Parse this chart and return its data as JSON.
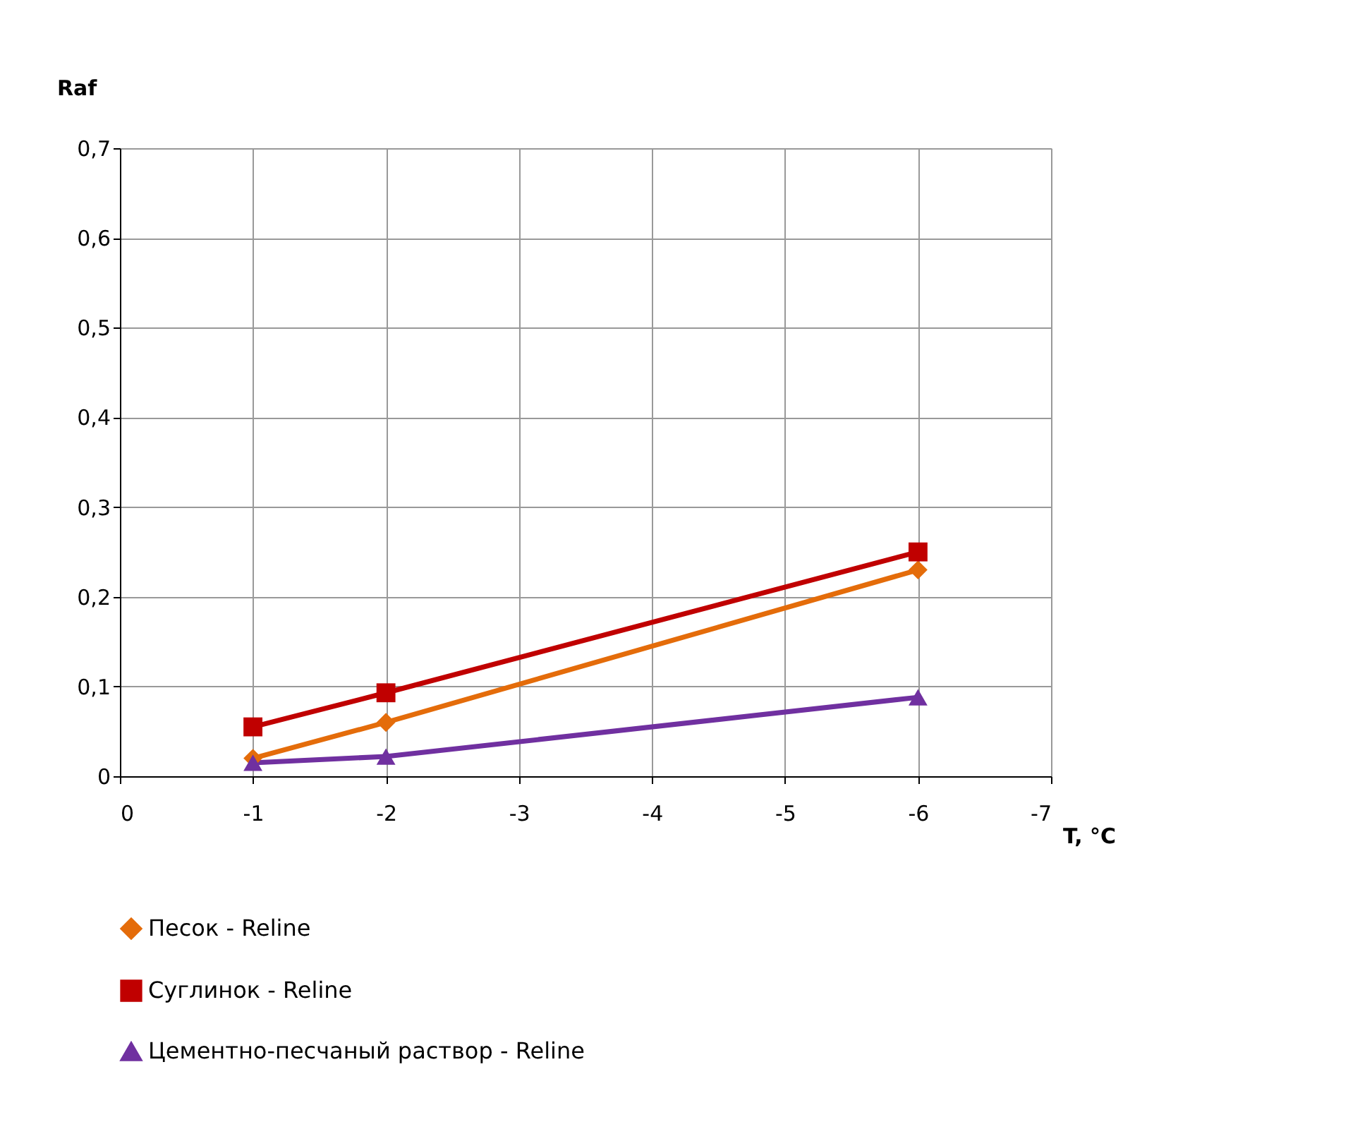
{
  "chart_data": {
    "type": "line",
    "xlabel": "T, °C",
    "ylabel": "Raf",
    "x": [
      -1,
      -2,
      -6
    ],
    "series": [
      {
        "name": "Песок - Reline",
        "color": "#e46c0a",
        "marker": "diamond",
        "values": [
          0.02,
          0.06,
          0.23
        ]
      },
      {
        "name": "Суглинок - Reline",
        "color": "#c00000",
        "marker": "square",
        "values": [
          0.055,
          0.093,
          0.25
        ]
      },
      {
        "name": "Цементно-песчаный раствор   - Reline",
        "color": "#7030a0",
        "marker": "triangle",
        "values": [
          0.015,
          0.022,
          0.088
        ]
      }
    ],
    "xlim": [
      0,
      -7
    ],
    "xticks": [
      0,
      -1,
      -2,
      -3,
      -4,
      -5,
      -6,
      -7
    ],
    "ylim": [
      0,
      0.7
    ],
    "yticks": [
      0,
      {
        "value": 0.1,
        "label": "0,1"
      },
      {
        "value": 0.2,
        "label": "0,2"
      },
      {
        "value": 0.3,
        "label": "0,3"
      },
      {
        "value": 0.4,
        "label": "0,4"
      },
      {
        "value": 0.5,
        "label": "0,5"
      },
      {
        "value": 0.6,
        "label": "0,6"
      },
      {
        "value": 0.7,
        "label": "0,7"
      }
    ],
    "grid": true,
    "legend": "bottom",
    "line_style": "solid"
  }
}
